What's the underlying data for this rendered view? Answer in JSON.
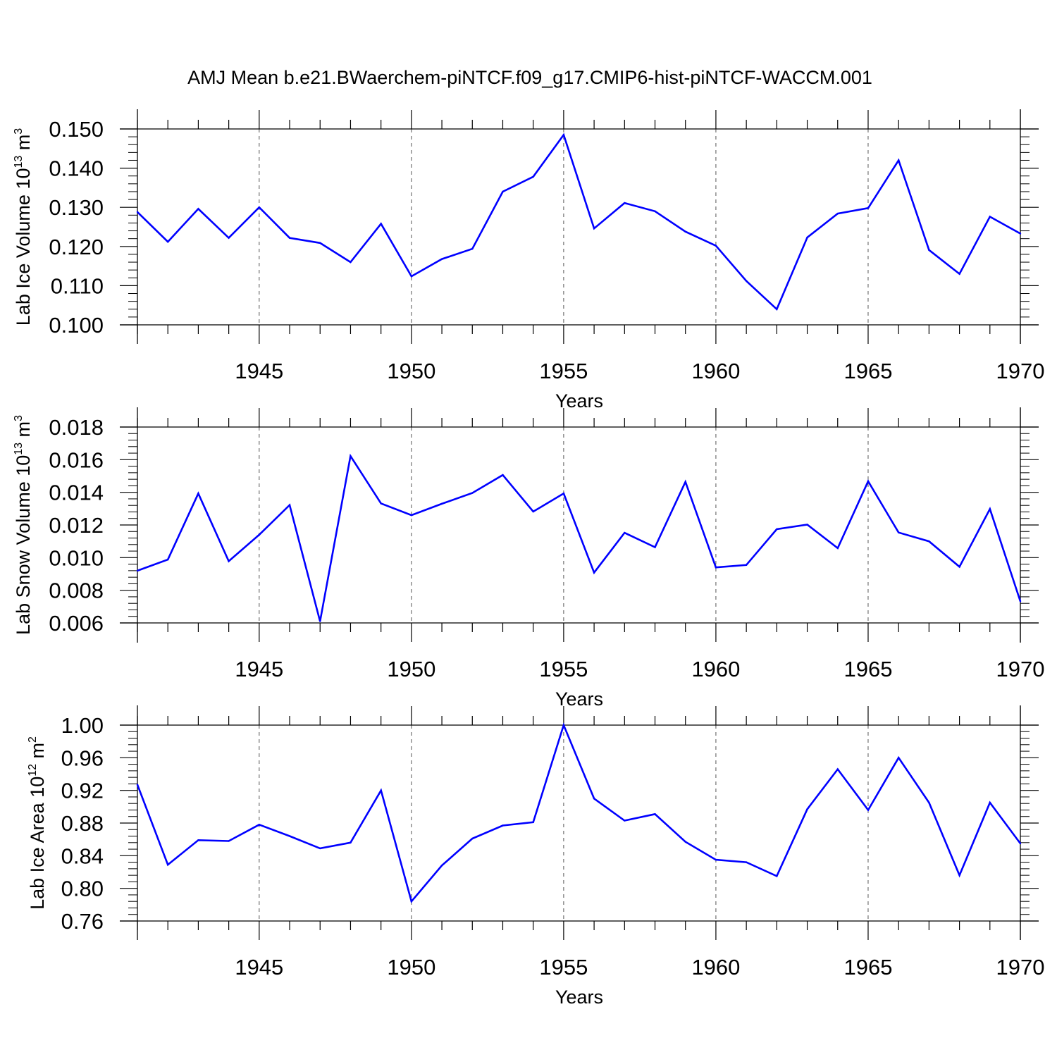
{
  "title": "AMJ Mean b.e21.BWaerchem-piNTCF.f09_g17.CMIP6-hist-piNTCF-WACCM.001",
  "colors": {
    "line": "#0000ff",
    "axis": "#000000",
    "grid": "#555555"
  },
  "chart_data": [
    {
      "type": "line",
      "ylabel_main": "Lab Ice Volume 10",
      "ylabel_exp": "13",
      "ylabel_unit": " m",
      "ylabel_unit_exp": "3",
      "xlabel": "Years",
      "xlim": [
        1941,
        1970
      ],
      "ylim": [
        0.1,
        0.15
      ],
      "xticks": [
        1945,
        1950,
        1955,
        1960,
        1965,
        1970
      ],
      "yticks": [
        "0.100",
        "0.110",
        "0.120",
        "0.130",
        "0.140",
        "0.150"
      ],
      "x": [
        1941,
        1942,
        1943,
        1944,
        1945,
        1946,
        1947,
        1948,
        1949,
        1950,
        1951,
        1952,
        1953,
        1954,
        1955,
        1956,
        1957,
        1958,
        1959,
        1960,
        1961,
        1962,
        1963,
        1964,
        1965,
        1966,
        1967,
        1968,
        1969,
        1970
      ],
      "values": [
        0.1288,
        0.1212,
        0.1296,
        0.1222,
        0.13,
        0.1222,
        0.1209,
        0.116,
        0.1258,
        0.1124,
        0.1168,
        0.1194,
        0.134,
        0.1378,
        0.1485,
        0.1246,
        0.1311,
        0.129,
        0.1238,
        0.1202,
        0.1112,
        0.104,
        0.1223,
        0.1284,
        0.1298,
        0.142,
        0.1191,
        0.113,
        0.1276,
        0.1233
      ]
    },
    {
      "type": "line",
      "ylabel_main": "Lab Snow Volume 10",
      "ylabel_exp": "13",
      "ylabel_unit": " m",
      "ylabel_unit_exp": "3",
      "xlabel": "Years",
      "xlim": [
        1941,
        1970
      ],
      "ylim": [
        0.006,
        0.018
      ],
      "xticks": [
        1945,
        1950,
        1955,
        1960,
        1965,
        1970
      ],
      "yticks": [
        "0.006",
        "0.008",
        "0.010",
        "0.012",
        "0.014",
        "0.016",
        "0.018"
      ],
      "x": [
        1941,
        1942,
        1943,
        1944,
        1945,
        1946,
        1947,
        1948,
        1949,
        1950,
        1951,
        1952,
        1953,
        1954,
        1955,
        1956,
        1957,
        1958,
        1959,
        1960,
        1961,
        1962,
        1963,
        1964,
        1965,
        1966,
        1967,
        1968,
        1969,
        1970
      ],
      "values": [
        0.0092,
        0.00988,
        0.01393,
        0.00978,
        0.0114,
        0.01322,
        0.0061,
        0.01622,
        0.01332,
        0.0126,
        0.0133,
        0.01396,
        0.01506,
        0.01282,
        0.01393,
        0.00908,
        0.01152,
        0.01064,
        0.01464,
        0.0094,
        0.00955,
        0.01174,
        0.01202,
        0.01058,
        0.01468,
        0.01154,
        0.011,
        0.00944,
        0.01298,
        0.00732
      ]
    },
    {
      "type": "line",
      "ylabel_main": "Lab Ice Area 10",
      "ylabel_exp": "12",
      "ylabel_unit": " m",
      "ylabel_unit_exp": "2",
      "xlabel": "Years",
      "xlim": [
        1941,
        1970
      ],
      "ylim": [
        0.76,
        1.0
      ],
      "xticks": [
        1945,
        1950,
        1955,
        1960,
        1965,
        1970
      ],
      "yticks": [
        "0.76",
        "0.80",
        "0.84",
        "0.88",
        "0.92",
        "0.96",
        "1.00"
      ],
      "x": [
        1941,
        1942,
        1943,
        1944,
        1945,
        1946,
        1947,
        1948,
        1949,
        1950,
        1951,
        1952,
        1953,
        1954,
        1955,
        1956,
        1957,
        1958,
        1959,
        1960,
        1961,
        1962,
        1963,
        1964,
        1965,
        1966,
        1967,
        1968,
        1969,
        1970
      ],
      "values": [
        0.927,
        0.829,
        0.859,
        0.858,
        0.878,
        0.864,
        0.849,
        0.856,
        0.92,
        0.784,
        0.828,
        0.861,
        0.877,
        0.881,
        1.0,
        0.91,
        0.883,
        0.891,
        0.857,
        0.835,
        0.832,
        0.815,
        0.897,
        0.946,
        0.896,
        0.96,
        0.905,
        0.816,
        0.905,
        0.855
      ]
    }
  ]
}
